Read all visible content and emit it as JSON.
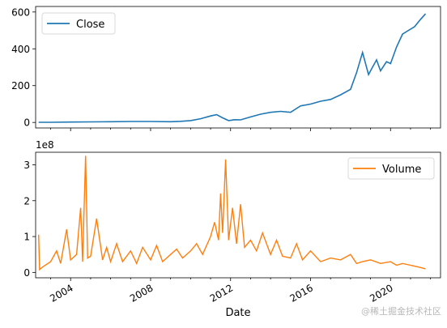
{
  "figure": {
    "xlabel": "Date",
    "xticks": [
      "2004",
      "2008",
      "2012",
      "2016",
      "2020"
    ],
    "watermark": "@稀土掘金技术社区"
  },
  "chart_data": [
    {
      "type": "line",
      "title": "",
      "xlabel": "",
      "ylabel": "",
      "legend": "top-left",
      "grid": false,
      "xlim": [
        2002.25,
        2022.5
      ],
      "ylim": [
        -30,
        630
      ],
      "yticks": [
        "0",
        "200",
        "400",
        "600"
      ],
      "series": [
        {
          "name": "Close",
          "color": "#1f77b4",
          "x": [
            2002.4,
            2003.0,
            2004.0,
            2005.0,
            2006.0,
            2007.0,
            2008.0,
            2009.0,
            2009.5,
            2010.0,
            2010.5,
            2011.0,
            2011.3,
            2011.6,
            2011.9,
            2012.2,
            2012.5,
            2013.0,
            2013.5,
            2014.0,
            2014.5,
            2015.0,
            2015.5,
            2016.0,
            2016.5,
            2017.0,
            2017.5,
            2018.0,
            2018.3,
            2018.6,
            2018.9,
            2019.1,
            2019.3,
            2019.5,
            2019.8,
            2020.0,
            2020.3,
            2020.6,
            2020.9,
            2021.2,
            2021.5,
            2021.75
          ],
          "y": [
            1,
            1,
            2,
            3,
            4,
            5,
            5,
            4,
            6,
            10,
            20,
            35,
            42,
            25,
            10,
            15,
            14,
            30,
            45,
            55,
            60,
            55,
            90,
            100,
            115,
            125,
            150,
            180,
            270,
            380,
            260,
            300,
            340,
            280,
            330,
            320,
            410,
            480,
            500,
            520,
            560,
            590
          ]
        }
      ]
    },
    {
      "type": "line",
      "title": "",
      "xlabel": "Date",
      "ylabel": "",
      "y_offset_text": "1e8",
      "legend": "top-right",
      "grid": false,
      "xlim": [
        2002.25,
        2022.5
      ],
      "ylim": [
        -0.15,
        3.35
      ],
      "yticks": [
        "0",
        "1",
        "2",
        "3"
      ],
      "series": [
        {
          "name": "Volume",
          "color": "#ff7f0e",
          "x": [
            2002.4,
            2002.45,
            2002.6,
            2003.0,
            2003.3,
            2003.5,
            2003.8,
            2004.0,
            2004.3,
            2004.5,
            2004.6,
            2004.75,
            2004.85,
            2005.0,
            2005.3,
            2005.6,
            2005.8,
            2006.0,
            2006.3,
            2006.6,
            2007.0,
            2007.3,
            2007.6,
            2008.0,
            2008.3,
            2008.6,
            2009.0,
            2009.3,
            2009.6,
            2010.0,
            2010.3,
            2010.6,
            2011.0,
            2011.2,
            2011.4,
            2011.5,
            2011.6,
            2011.75,
            2011.9,
            2012.1,
            2012.3,
            2012.5,
            2012.7,
            2013.0,
            2013.3,
            2013.6,
            2014.0,
            2014.3,
            2014.6,
            2015.0,
            2015.3,
            2015.6,
            2016.0,
            2016.5,
            2017.0,
            2017.5,
            2018.0,
            2018.3,
            2018.6,
            2019.0,
            2019.5,
            2020.0,
            2020.3,
            2020.6,
            2021.0,
            2021.4,
            2021.75
          ],
          "y": [
            1.05,
            0.08,
            0.15,
            0.3,
            0.6,
            0.25,
            1.2,
            0.35,
            0.5,
            1.8,
            0.3,
            3.25,
            0.4,
            0.45,
            1.5,
            0.35,
            0.7,
            0.3,
            0.8,
            0.3,
            0.6,
            0.25,
            0.7,
            0.35,
            0.75,
            0.3,
            0.5,
            0.65,
            0.4,
            0.6,
            0.8,
            0.5,
            1.0,
            1.4,
            0.9,
            2.2,
            1.1,
            3.15,
            0.9,
            1.8,
            0.8,
            1.9,
            0.7,
            0.9,
            0.6,
            1.1,
            0.5,
            0.9,
            0.45,
            0.4,
            0.8,
            0.35,
            0.6,
            0.3,
            0.4,
            0.35,
            0.5,
            0.25,
            0.3,
            0.35,
            0.25,
            0.3,
            0.2,
            0.25,
            0.2,
            0.15,
            0.1
          ]
        }
      ]
    }
  ]
}
